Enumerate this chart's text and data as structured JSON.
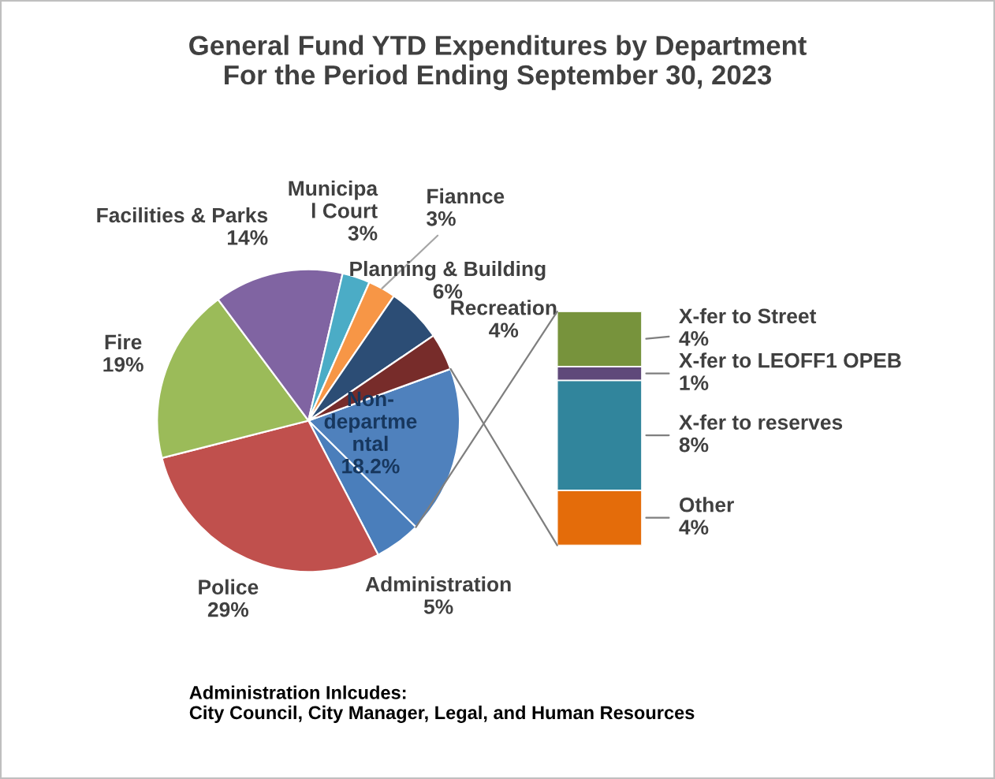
{
  "chart_data": [
    {
      "type": "pie",
      "title": "General Fund YTD Expenditures by Department\nFor the Period Ending September 30, 2023",
      "categories": [
        "Non-\ndepartme\nntal",
        "Administration",
        "Police",
        "Fire",
        "Facilities & Parks",
        "Municipa\nl Court",
        "Fiannce",
        "Planning & Building",
        "Recreation"
      ],
      "values": [
        18.2,
        5,
        29,
        19,
        14,
        3,
        3,
        6,
        4
      ],
      "value_labels": [
        "18.2%",
        "5%",
        "29%",
        "19%",
        "14%",
        "3%",
        "3%",
        "6%",
        "4%"
      ],
      "colors": [
        "#4f81bd",
        "#4a7ebb",
        "#c0504d",
        "#9bbb59",
        "#8064a2",
        "#4bacc6",
        "#f79646",
        "#2c4d75",
        "#772c2a"
      ],
      "annotations": [
        "Administration Inlcudes:\nCity Council, City Manager, Legal, and Human Resources"
      ]
    },
    {
      "type": "bar",
      "stacked": true,
      "categories": [
        null
      ],
      "series": [
        {
          "name": "Other",
          "color": "#e46c0a",
          "values": [
            4
          ],
          "value_labels": [
            "4%"
          ]
        },
        {
          "name": "X-fer to reserves",
          "color": "#31859c",
          "values": [
            8
          ],
          "value_labels": [
            "8%"
          ]
        },
        {
          "name": "X-fer to LEOFF1 OPEB",
          "color": "#5f497a",
          "values": [
            1
          ],
          "value_labels": [
            "1%"
          ]
        },
        {
          "name": "X-fer to Street",
          "color": "#77933c",
          "values": [
            4
          ],
          "value_labels": [
            "4%"
          ]
        }
      ]
    }
  ]
}
